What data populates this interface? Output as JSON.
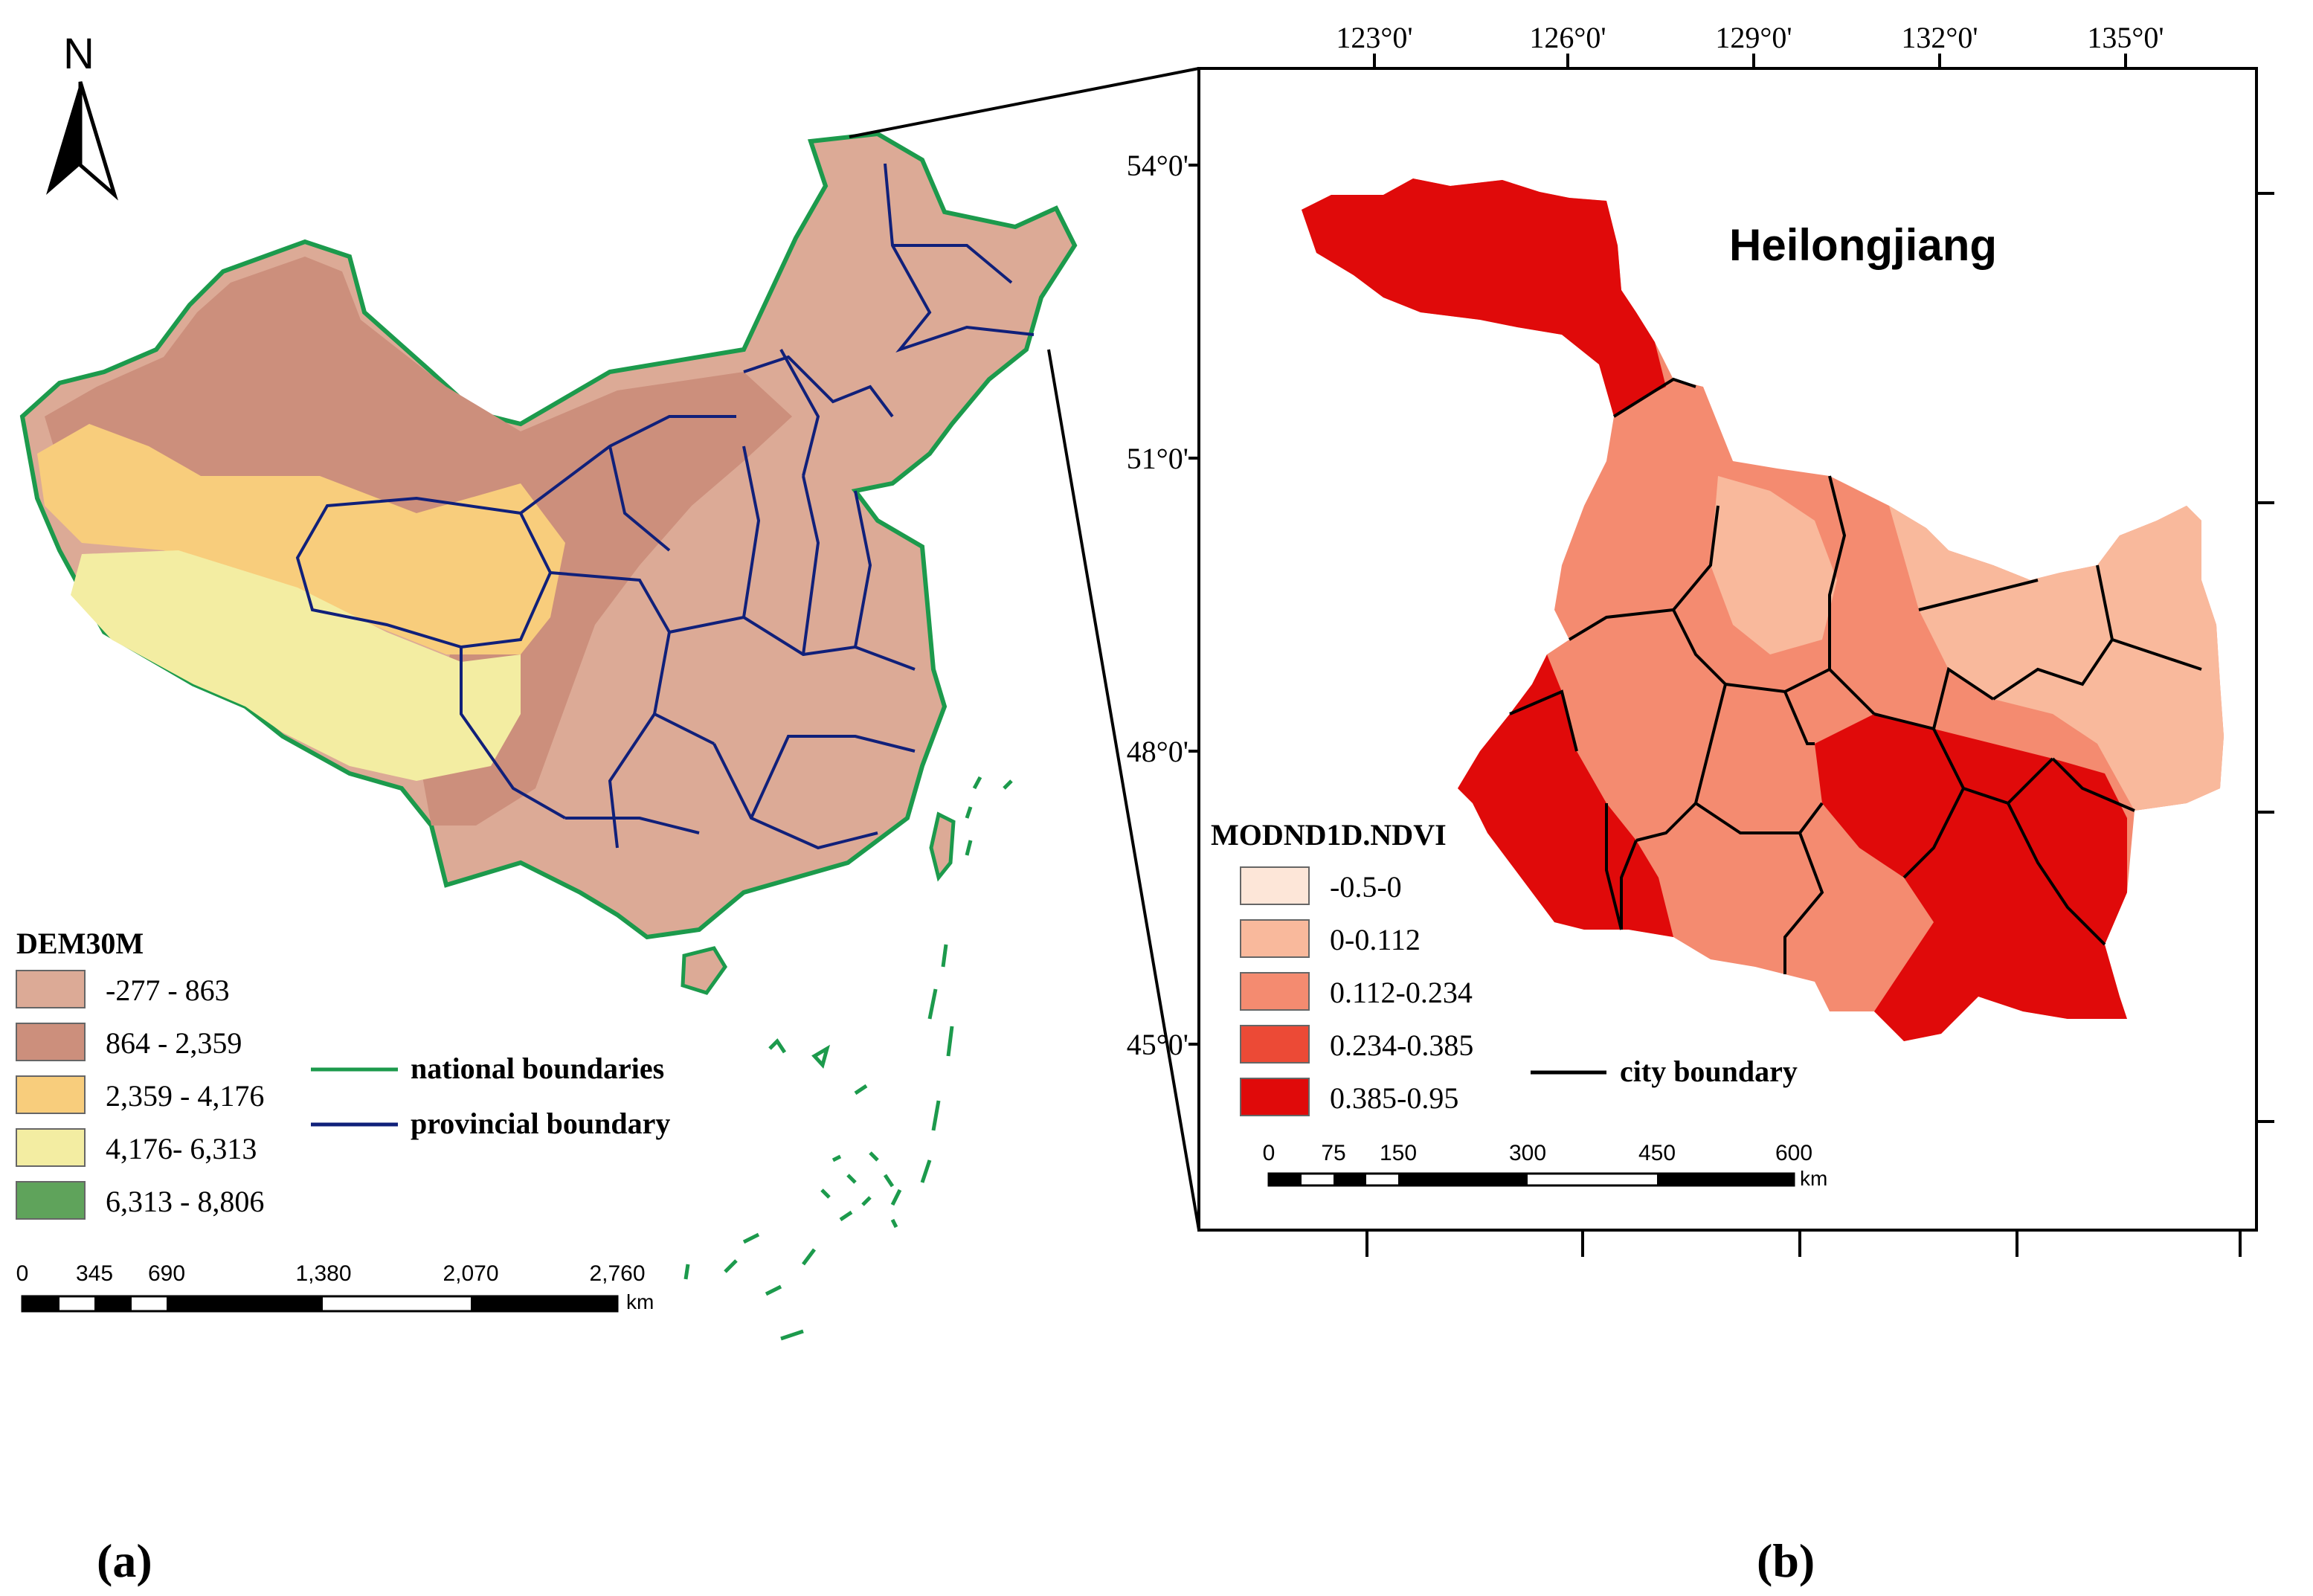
{
  "north_arrow": {
    "label": "N"
  },
  "panel_a": {
    "caption": "(a)",
    "legend": {
      "title": "DEM30M",
      "classes": [
        {
          "label": "-277 - 863",
          "color": "#dcaa96"
        },
        {
          "label": "864 - 2,359",
          "color": "#cc8f7c"
        },
        {
          "label": "2,359 - 4,176",
          "color": "#f8cd7c"
        },
        {
          "label": "4,176- 6,313",
          "color": "#f3eda2"
        },
        {
          "label": "6,313 - 8,806",
          "color": "#5fa35b"
        }
      ],
      "lines": [
        {
          "label": "national boundaries",
          "color": "#1c9a4c"
        },
        {
          "label": "provincial boundary",
          "color": "#10207a"
        }
      ]
    },
    "scale_bar": {
      "ticks": [
        "0",
        "345",
        "690",
        "1,380",
        "2,070",
        "2,760"
      ],
      "unit": "km"
    }
  },
  "panel_b": {
    "caption": "(b)",
    "title": "Heilongjiang",
    "longitude_labels": [
      "123°0'",
      "126°0'",
      "129°0'",
      "132°0'",
      "135°0'"
    ],
    "latitude_labels": [
      "54°0'",
      "51°0'",
      "48°0'",
      "45°0'"
    ],
    "legend": {
      "title": "MODND1D.NDVI",
      "classes": [
        {
          "label": "-0.5-0",
          "color": "#fde6d8"
        },
        {
          "label": "0-0.112",
          "color": "#f9b99c"
        },
        {
          "label": "0.112-0.234",
          "color": "#f48b70"
        },
        {
          "label": "0.234-0.385",
          "color": "#ec4a36"
        },
        {
          "label": "0.385-0.95",
          "color": "#e00a0a"
        }
      ],
      "lines": [
        {
          "label": "city boundary",
          "color": "#000000"
        }
      ]
    },
    "scale_bar": {
      "ticks": [
        "0",
        "75",
        "150",
        "300",
        "450",
        "600"
      ],
      "unit": "km"
    }
  }
}
